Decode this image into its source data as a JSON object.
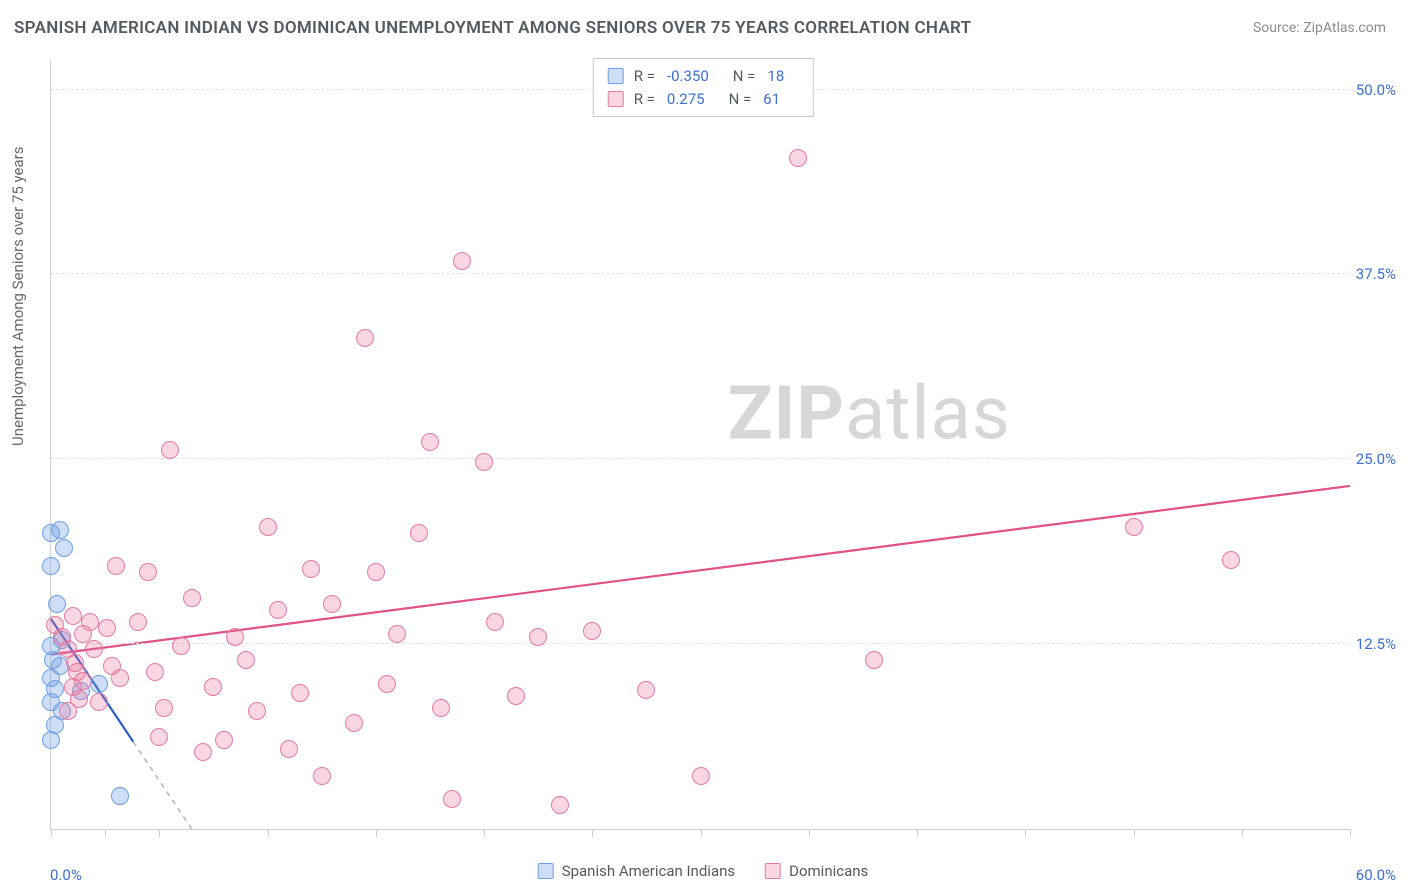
{
  "title": "SPANISH AMERICAN INDIAN VS DOMINICAN UNEMPLOYMENT AMONG SENIORS OVER 75 YEARS CORRELATION CHART",
  "source": "Source: ZipAtlas.com",
  "watermark_bold": "ZIP",
  "watermark_light": "atlas",
  "y_axis_label": "Unemployment Among Seniors over 75 years",
  "x0_label": "0.0%",
  "xmax_label": "60.0%",
  "chart": {
    "type": "scatter",
    "xlim": [
      0,
      60
    ],
    "ylim": [
      0,
      52
    ],
    "y_ticks": [
      {
        "v": 12.5,
        "label": "12.5%"
      },
      {
        "v": 25.0,
        "label": "25.0%"
      },
      {
        "v": 37.5,
        "label": "37.5%"
      },
      {
        "v": 50.0,
        "label": "50.0%"
      }
    ],
    "x_tick_positions": [
      0,
      2.5,
      5,
      10,
      15,
      20,
      25,
      30,
      35,
      40,
      45,
      50,
      55,
      60
    ],
    "background_color": "#ffffff",
    "grid_color": "#e2e2e2",
    "axis_color": "#cfcfcf",
    "tick_label_color": "#3b6fd6",
    "series": [
      {
        "key": "sai",
        "name": "Spanish American Indians",
        "fill": "rgba(112,161,230,0.35)",
        "stroke": "#6fa0e5",
        "trend_color": "#2b5fc7",
        "trend_dash_color": "#b8b8b8",
        "r_value": "-0.350",
        "n_value": "18",
        "marker_radius": 9,
        "trend": {
          "x1": 0,
          "y1": 14.2,
          "x2": 6.5,
          "y2": 0,
          "dash_from_x": 3.8
        },
        "points": [
          [
            0.0,
            20.0
          ],
          [
            0.4,
            20.2
          ],
          [
            0.6,
            19.0
          ],
          [
            0.0,
            17.8
          ],
          [
            0.3,
            15.2
          ],
          [
            0.0,
            12.4
          ],
          [
            0.1,
            11.4
          ],
          [
            0.5,
            12.8
          ],
          [
            0.4,
            11.0
          ],
          [
            0.0,
            10.2
          ],
          [
            0.2,
            9.5
          ],
          [
            0.0,
            8.6
          ],
          [
            0.5,
            8.0
          ],
          [
            0.2,
            7.0
          ],
          [
            0.0,
            6.0
          ],
          [
            1.4,
            9.3
          ],
          [
            3.2,
            2.2
          ],
          [
            2.2,
            9.8
          ]
        ]
      },
      {
        "key": "dom",
        "name": "Dominicans",
        "fill": "rgba(236,120,160,0.30)",
        "stroke": "#e67aa0",
        "trend_color": "#e05286",
        "r_value": "0.275",
        "n_value": "61",
        "marker_radius": 9,
        "trend": {
          "x1": 0,
          "y1": 11.8,
          "x2": 60,
          "y2": 23.2
        },
        "points": [
          [
            0.2,
            13.8
          ],
          [
            0.5,
            13.0
          ],
          [
            0.8,
            12.2
          ],
          [
            1.0,
            14.4
          ],
          [
            1.2,
            10.6
          ],
          [
            1.0,
            9.6
          ],
          [
            1.3,
            8.8
          ],
          [
            0.8,
            8.0
          ],
          [
            1.1,
            11.2
          ],
          [
            1.5,
            13.2
          ],
          [
            1.5,
            10.0
          ],
          [
            1.8,
            14.0
          ],
          [
            2.0,
            12.2
          ],
          [
            2.2,
            8.6
          ],
          [
            2.6,
            13.6
          ],
          [
            2.8,
            11.0
          ],
          [
            3.0,
            17.8
          ],
          [
            3.2,
            10.2
          ],
          [
            4.0,
            14.0
          ],
          [
            4.5,
            17.4
          ],
          [
            4.8,
            10.6
          ],
          [
            5.0,
            6.2
          ],
          [
            5.2,
            8.2
          ],
          [
            5.5,
            25.6
          ],
          [
            6.0,
            12.4
          ],
          [
            6.5,
            15.6
          ],
          [
            7.0,
            5.2
          ],
          [
            7.5,
            9.6
          ],
          [
            8.0,
            6.0
          ],
          [
            8.5,
            13.0
          ],
          [
            9.0,
            11.4
          ],
          [
            9.5,
            8.0
          ],
          [
            10.0,
            20.4
          ],
          [
            10.5,
            14.8
          ],
          [
            11.0,
            5.4
          ],
          [
            11.5,
            9.2
          ],
          [
            12.0,
            17.6
          ],
          [
            12.5,
            3.6
          ],
          [
            13.0,
            15.2
          ],
          [
            14.0,
            7.2
          ],
          [
            14.5,
            33.2
          ],
          [
            15.0,
            17.4
          ],
          [
            15.5,
            9.8
          ],
          [
            16.0,
            13.2
          ],
          [
            17.0,
            20.0
          ],
          [
            17.5,
            26.2
          ],
          [
            18.0,
            8.2
          ],
          [
            18.5,
            2.0
          ],
          [
            19.0,
            38.4
          ],
          [
            20.0,
            24.8
          ],
          [
            20.5,
            14.0
          ],
          [
            21.5,
            9.0
          ],
          [
            22.5,
            13.0
          ],
          [
            23.5,
            1.6
          ],
          [
            25.0,
            13.4
          ],
          [
            27.5,
            9.4
          ],
          [
            30.0,
            3.6
          ],
          [
            34.5,
            45.4
          ],
          [
            38.0,
            11.4
          ],
          [
            50.0,
            20.4
          ],
          [
            54.5,
            18.2
          ]
        ]
      }
    ]
  },
  "legend_top_labels": {
    "R": "R =",
    "N": "N ="
  },
  "legend_bottom": [
    {
      "swatch_fill": "rgba(112,161,230,0.35)",
      "swatch_stroke": "#6fa0e5",
      "label": "Spanish American Indians"
    },
    {
      "swatch_fill": "rgba(236,120,160,0.30)",
      "swatch_stroke": "#e67aa0",
      "label": "Dominicans"
    }
  ]
}
